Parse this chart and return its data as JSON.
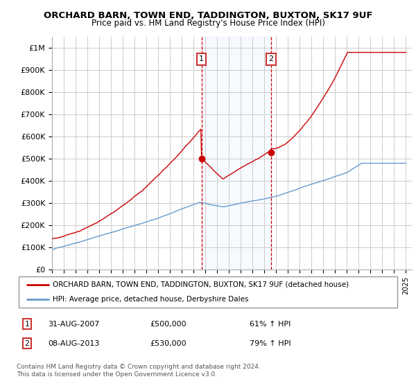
{
  "title": "ORCHARD BARN, TOWN END, TADDINGTON, BUXTON, SK17 9UF",
  "subtitle": "Price paid vs. HM Land Registry's House Price Index (HPI)",
  "ylabel_ticks": [
    "£0",
    "£100K",
    "£200K",
    "£300K",
    "£400K",
    "£500K",
    "£600K",
    "£700K",
    "£800K",
    "£900K",
    "£1M"
  ],
  "ytick_values": [
    0,
    100000,
    200000,
    300000,
    400000,
    500000,
    600000,
    700000,
    800000,
    900000,
    1000000
  ],
  "ylim": [
    0,
    1050000
  ],
  "xlim_start": 1995,
  "xlim_end": 2025.5,
  "red_line_color": "#cc0000",
  "blue_line_color": "#6699cc",
  "background_color": "#ffffff",
  "plot_bg_color": "#ffffff",
  "shaded_region_color": "#ddeeff",
  "grid_color": "#cccccc",
  "sale1_x": 2007.67,
  "sale1_y": 500000,
  "sale2_x": 2013.58,
  "sale2_y": 530000,
  "legend_red_label": "ORCHARD BARN, TOWN END, TADDINGTON, BUXTON, SK17 9UF (detached house)",
  "legend_blue_label": "HPI: Average price, detached house, Derbyshire Dales",
  "annot1_label": "1",
  "annot1_date": "31-AUG-2007",
  "annot1_price": "£500,000",
  "annot1_hpi": "61% ↑ HPI",
  "annot2_label": "2",
  "annot2_date": "08-AUG-2013",
  "annot2_price": "£530,000",
  "annot2_hpi": "79% ↑ HPI",
  "footer": "Contains HM Land Registry data © Crown copyright and database right 2024.\nThis data is licensed under the Open Government Licence v3.0."
}
